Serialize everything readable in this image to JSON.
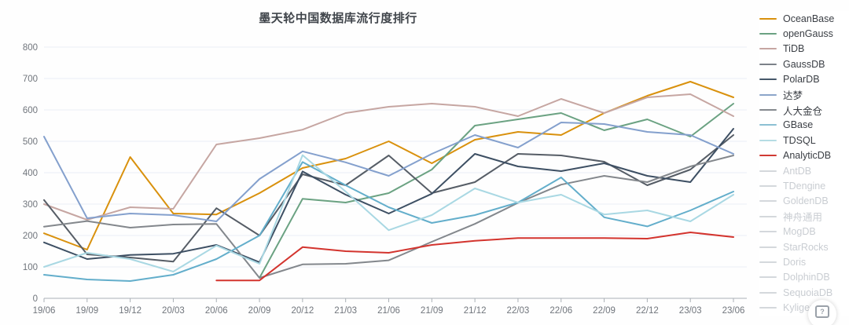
{
  "title": "墨天轮中国数据库流行度排行",
  "chart_data": {
    "type": "line",
    "title": "墨天轮中国数据库流行度排行",
    "xlabel": "",
    "ylabel": "",
    "ylim": [
      0,
      800
    ],
    "y_ticks": [
      0,
      100,
      200,
      300,
      400,
      500,
      600,
      700,
      800
    ],
    "grid": true,
    "legend_position": "right",
    "categories": [
      "19/06",
      "19/09",
      "19/12",
      "20/03",
      "20/06",
      "20/09",
      "20/12",
      "21/03",
      "21/06",
      "21/09",
      "21/12",
      "22/03",
      "22/06",
      "22/09",
      "22/12",
      "23/03",
      "23/06"
    ],
    "series": [
      {
        "name": "OceanBase",
        "color": "#d9910d",
        "values": [
          207,
          155,
          450,
          270,
          267,
          335,
          415,
          445,
          500,
          430,
          505,
          530,
          520,
          590,
          645,
          690,
          640
        ]
      },
      {
        "name": "openGauss",
        "color": "#6ba282",
        "values": [
          null,
          null,
          null,
          null,
          null,
          65,
          317,
          305,
          335,
          410,
          550,
          570,
          590,
          535,
          570,
          515,
          620
        ]
      },
      {
        "name": "TiDB",
        "color": "#c6a6a2",
        "values": [
          300,
          250,
          290,
          285,
          490,
          510,
          537,
          590,
          610,
          620,
          610,
          580,
          635,
          590,
          640,
          650,
          580
        ]
      },
      {
        "name": "GaussDB",
        "color": "#565d66",
        "values": [
          313,
          140,
          130,
          117,
          287,
          200,
          395,
          360,
          455,
          335,
          370,
          460,
          455,
          435,
          360,
          410,
          520
        ]
      },
      {
        "name": "PolarDB",
        "color": "#3d4f63",
        "values": [
          178,
          125,
          138,
          142,
          170,
          115,
          404,
          330,
          270,
          333,
          460,
          420,
          405,
          430,
          390,
          370,
          540
        ]
      },
      {
        "name": "达梦",
        "color": "#84a0cd",
        "values": [
          515,
          255,
          270,
          265,
          245,
          380,
          468,
          433,
          390,
          460,
          520,
          480,
          560,
          555,
          530,
          520,
          460
        ]
      },
      {
        "name": "人大金仓",
        "color": "#83878c",
        "values": [
          228,
          246,
          225,
          235,
          237,
          65,
          108,
          110,
          121,
          180,
          237,
          304,
          362,
          390,
          370,
          420,
          455
        ]
      },
      {
        "name": "GBase",
        "color": "#63aecb",
        "values": [
          75,
          60,
          55,
          75,
          125,
          200,
          434,
          360,
          290,
          240,
          265,
          305,
          385,
          258,
          229,
          280,
          340
        ]
      },
      {
        "name": "TDSQL",
        "color": "#a9d8e3",
        "values": [
          100,
          145,
          125,
          85,
          168,
          110,
          456,
          340,
          217,
          265,
          350,
          305,
          330,
          267,
          280,
          245,
          330
        ]
      },
      {
        "name": "AnalyticDB",
        "color": "#d3342e",
        "values": [
          null,
          null,
          null,
          null,
          57,
          57,
          163,
          150,
          145,
          170,
          183,
          192,
          192,
          192,
          190,
          210,
          195
        ]
      }
    ],
    "inactive_series": [
      "AntDB",
      "TDengine",
      "GoldenDB",
      "神舟通用",
      "MogDB",
      "StarRocks",
      "Doris",
      "DolphinDB",
      "SequoiaDB",
      "Kyligence"
    ]
  },
  "legend": {
    "inactive_color": "#d4d8dc",
    "items": [
      {
        "label": "OceanBase",
        "color": "#d9910d",
        "active": true
      },
      {
        "label": "openGauss",
        "color": "#6ba282",
        "active": true
      },
      {
        "label": "TiDB",
        "color": "#c6a6a2",
        "active": true
      },
      {
        "label": "GaussDB",
        "color": "#7c8289",
        "active": true
      },
      {
        "label": "PolarDB",
        "color": "#46586a",
        "active": true
      },
      {
        "label": "达梦",
        "color": "#8ca5c9",
        "active": true
      },
      {
        "label": "人大金仓",
        "color": "#85898e",
        "active": true
      },
      {
        "label": "GBase",
        "color": "#8cc0d3",
        "active": true
      },
      {
        "label": "TDSQL",
        "color": "#b5dce4",
        "active": true
      },
      {
        "label": "AnalyticDB",
        "color": "#d03a34",
        "active": true
      },
      {
        "label": "AntDB",
        "color": "#d4d8dc",
        "active": false
      },
      {
        "label": "TDengine",
        "color": "#d4d8dc",
        "active": false
      },
      {
        "label": "GoldenDB",
        "color": "#d4d8dc",
        "active": false
      },
      {
        "label": "神舟通用",
        "color": "#d4d8dc",
        "active": false
      },
      {
        "label": "MogDB",
        "color": "#d4d8dc",
        "active": false
      },
      {
        "label": "StarRocks",
        "color": "#d4d8dc",
        "active": false
      },
      {
        "label": "Doris",
        "color": "#d4d8dc",
        "active": false
      },
      {
        "label": "DolphinDB",
        "color": "#d4d8dc",
        "active": false
      },
      {
        "label": "SequoiaDB",
        "color": "#d4d8dc",
        "active": false
      },
      {
        "label": "Kyligence",
        "color": "#d4d8dc",
        "active": false
      }
    ]
  },
  "axes": {
    "y_tick_labels": [
      "800",
      "700",
      "600",
      "500",
      "400",
      "300",
      "200",
      "100",
      "0"
    ],
    "x_tick_labels": [
      "19/06",
      "19/09",
      "19/12",
      "20/03",
      "20/06",
      "20/09",
      "20/12",
      "21/03",
      "21/06",
      "21/09",
      "21/12",
      "22/03",
      "22/06",
      "22/09",
      "22/12",
      "23/03",
      "23/06"
    ],
    "grid_color": "#e9eff6",
    "axis_color": "#aab0b6",
    "label_color": "#70757c"
  },
  "help_button": {
    "glyph": "?"
  }
}
